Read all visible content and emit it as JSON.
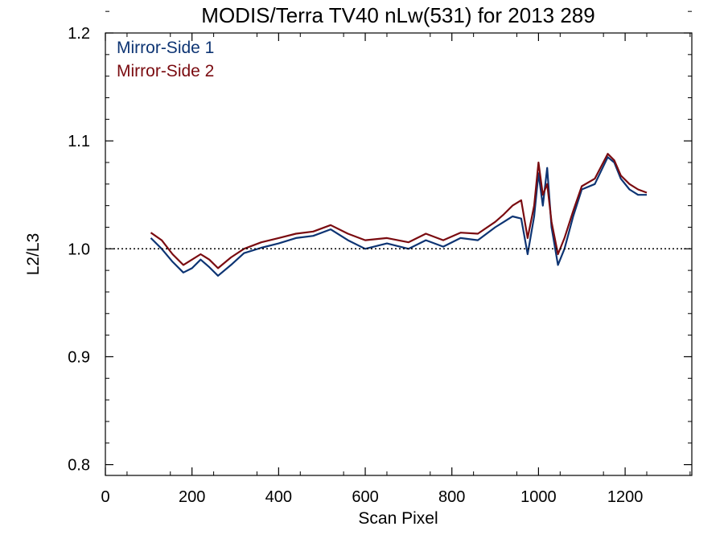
{
  "chart_data": {
    "type": "line",
    "title": "MODIS/Terra TV40 nLw(531) for 2013 289",
    "xlabel": "Scan Pixel",
    "ylabel": "L2/L3",
    "xlim": [
      0,
      1354
    ],
    "ylim": [
      0.79,
      1.2
    ],
    "x_ticks": [
      0,
      200,
      400,
      600,
      800,
      1000,
      1200
    ],
    "x_tick_labels": [
      "0",
      "200",
      "400",
      "600",
      "800",
      "1000",
      "1200"
    ],
    "y_ticks": [
      0.8,
      0.9,
      1.0,
      1.1,
      1.2
    ],
    "y_tick_labels": [
      "0.8",
      "0.9",
      "1.0",
      "1.1",
      "1.2"
    ],
    "reference_line": {
      "y": 1.0,
      "style": "dotted"
    },
    "grid": false,
    "legend": {
      "placement": "top-left"
    },
    "colors": {
      "Mirror-Side 1": "#0d3473",
      "Mirror-Side 2": "#7a0b10"
    },
    "series": [
      {
        "name": "Mirror-Side 1",
        "x": [
          105,
          130,
          155,
          180,
          200,
          220,
          240,
          260,
          290,
          320,
          360,
          400,
          440,
          480,
          520,
          560,
          600,
          650,
          700,
          740,
          780,
          820,
          860,
          900,
          920,
          940,
          960,
          975,
          990,
          1000,
          1010,
          1020,
          1030,
          1045,
          1060,
          1080,
          1100,
          1130,
          1160,
          1175,
          1190,
          1210,
          1230,
          1250
        ],
        "values": [
          1.01,
          1.0,
          0.988,
          0.978,
          0.982,
          0.99,
          0.983,
          0.975,
          0.985,
          0.996,
          1.001,
          1.005,
          1.01,
          1.012,
          1.018,
          1.008,
          1.0,
          1.005,
          1.0,
          1.008,
          1.002,
          1.01,
          1.008,
          1.02,
          1.025,
          1.03,
          1.028,
          0.995,
          1.03,
          1.07,
          1.04,
          1.075,
          1.02,
          0.985,
          1.0,
          1.03,
          1.055,
          1.06,
          1.085,
          1.08,
          1.065,
          1.055,
          1.05,
          1.05
        ]
      },
      {
        "name": "Mirror-Side 2",
        "x": [
          105,
          130,
          155,
          180,
          200,
          220,
          240,
          260,
          290,
          320,
          360,
          400,
          440,
          480,
          520,
          560,
          600,
          650,
          700,
          740,
          780,
          820,
          860,
          900,
          920,
          940,
          960,
          975,
          990,
          1000,
          1010,
          1020,
          1030,
          1045,
          1060,
          1080,
          1100,
          1130,
          1160,
          1175,
          1190,
          1210,
          1230,
          1250
        ],
        "values": [
          1.015,
          1.008,
          0.995,
          0.985,
          0.99,
          0.995,
          0.99,
          0.982,
          0.992,
          1.0,
          1.006,
          1.01,
          1.014,
          1.016,
          1.022,
          1.014,
          1.008,
          1.01,
          1.006,
          1.014,
          1.008,
          1.015,
          1.014,
          1.025,
          1.032,
          1.04,
          1.045,
          1.01,
          1.04,
          1.08,
          1.05,
          1.06,
          1.025,
          0.995,
          1.01,
          1.035,
          1.058,
          1.065,
          1.088,
          1.082,
          1.068,
          1.06,
          1.055,
          1.052
        ]
      }
    ]
  }
}
